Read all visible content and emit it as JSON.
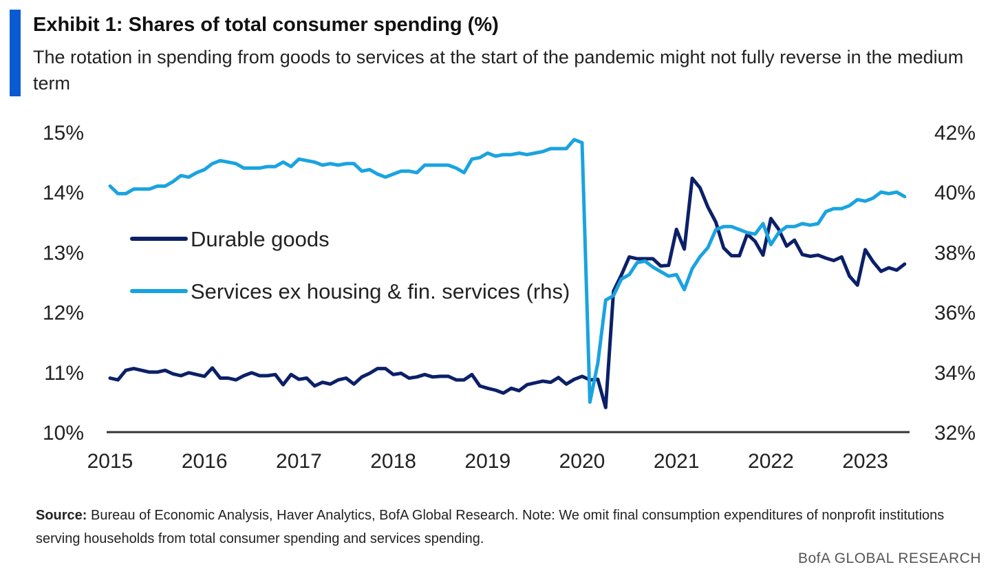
{
  "header": {
    "title": "Exhibit 1: Shares of total consumer spending (%)",
    "subtitle": "The rotation in spending from goods to services at the start of the pandemic might not fully reverse in the medium term"
  },
  "footer": {
    "source_label": "Source:",
    "source_text": "Bureau of Economic Analysis, Haver Analytics, BofA Global Research. Note: We omit final consumption expenditures of nonprofit institutions serving households from total consumer spending and services spending.",
    "brand": "BofA GLOBAL RESEARCH"
  },
  "colors": {
    "accent": "#0a5bd1",
    "durable": "#0c2068",
    "services": "#1aa3e0",
    "axis": "#333333"
  },
  "chart_data": {
    "type": "line",
    "x_start": "2015-01",
    "frequency": "monthly",
    "x_ticks": [
      "2015",
      "2016",
      "2017",
      "2018",
      "2019",
      "2020",
      "2021",
      "2022",
      "2023"
    ],
    "y_left": {
      "ylim": [
        10,
        15
      ],
      "ticks": [
        "10%",
        "11%",
        "12%",
        "13%",
        "14%",
        "15%"
      ]
    },
    "y_right": {
      "ylim": [
        32,
        42
      ],
      "ticks": [
        "32%",
        "34%",
        "36%",
        "38%",
        "40%",
        "42%"
      ]
    },
    "grid": false,
    "legend_position": "left-middle",
    "series": [
      {
        "name": "Durable goods",
        "axis": "left",
        "values": [
          10.9,
          10.87,
          11.03,
          11.06,
          11.03,
          11.0,
          11.0,
          11.03,
          10.97,
          10.94,
          10.99,
          10.96,
          10.93,
          11.07,
          10.9,
          10.9,
          10.87,
          10.94,
          10.99,
          10.94,
          10.94,
          10.96,
          10.79,
          10.96,
          10.88,
          10.9,
          10.77,
          10.83,
          10.8,
          10.87,
          10.9,
          10.8,
          10.92,
          10.98,
          11.06,
          11.06,
          10.96,
          10.98,
          10.9,
          10.92,
          10.96,
          10.92,
          10.93,
          10.93,
          10.87,
          10.87,
          10.96,
          10.77,
          10.73,
          10.7,
          10.65,
          10.73,
          10.69,
          10.79,
          10.82,
          10.85,
          10.83,
          10.91,
          10.8,
          10.88,
          10.93,
          10.87,
          10.88,
          10.41,
          12.35,
          12.62,
          12.92,
          12.89,
          12.89,
          12.89,
          12.77,
          12.78,
          13.38,
          13.05,
          14.23,
          14.07,
          13.75,
          13.5,
          13.07,
          12.94,
          12.94,
          13.3,
          13.18,
          12.95,
          13.56,
          13.38,
          13.1,
          13.2,
          12.96,
          12.93,
          12.95,
          12.9,
          12.86,
          12.92,
          12.6,
          12.45,
          13.04,
          12.84,
          12.68,
          12.74,
          12.7,
          12.8
        ]
      },
      {
        "name": "Services ex housing & fin. services (rhs)",
        "axis": "right",
        "values": [
          40.2,
          39.95,
          39.95,
          40.1,
          40.1,
          40.1,
          40.2,
          40.2,
          40.35,
          40.55,
          40.5,
          40.65,
          40.75,
          40.95,
          41.05,
          41.0,
          40.95,
          40.8,
          40.8,
          40.8,
          40.85,
          40.85,
          41.0,
          40.85,
          41.1,
          41.05,
          41.0,
          40.9,
          40.95,
          40.9,
          40.95,
          40.95,
          40.7,
          40.75,
          40.6,
          40.5,
          40.6,
          40.7,
          40.7,
          40.65,
          40.9,
          40.9,
          40.9,
          40.9,
          40.8,
          40.65,
          41.1,
          41.15,
          41.3,
          41.2,
          41.25,
          41.25,
          41.3,
          41.25,
          41.3,
          41.35,
          41.45,
          41.45,
          41.45,
          41.75,
          41.65,
          33.0,
          34.3,
          36.4,
          36.55,
          37.1,
          37.25,
          37.65,
          37.7,
          37.5,
          37.35,
          37.2,
          37.25,
          36.75,
          37.45,
          37.85,
          38.15,
          38.75,
          38.85,
          38.85,
          38.75,
          38.65,
          38.6,
          38.95,
          38.25,
          38.65,
          38.85,
          38.85,
          38.95,
          38.9,
          38.95,
          39.35,
          39.45,
          39.45,
          39.55,
          39.75,
          39.7,
          39.8,
          40.0,
          39.95,
          40.0,
          39.85
        ]
      }
    ]
  }
}
